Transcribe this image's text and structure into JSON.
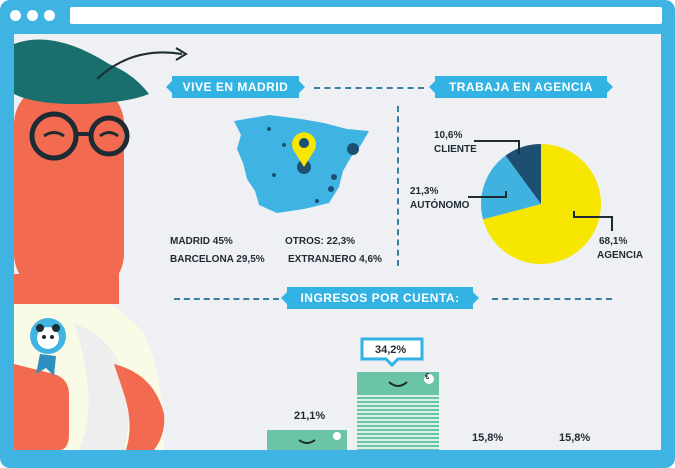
{
  "sections": {
    "madrid_title": "VIVE EN MADRID",
    "agency_title": "TRABAJA EN AGENCIA",
    "income_title": "INGRESOS POR CUENTA:"
  },
  "map_stats": {
    "madrid": "MADRID 45%",
    "barcelona": "BARCELONA 29,5%",
    "otros": "OTROS: 22,3%",
    "extranjero": "EXTRANJERO 4,6%"
  },
  "pie": {
    "cliente_pct": "10,6%",
    "cliente_label": "CLIENTE",
    "autonomo_pct": "21,3%",
    "autonomo_label": "AUTÓNOMO",
    "agencia_pct": "68,1%",
    "agencia_label": "AGENCIA",
    "colors": {
      "agencia": "#f6e600",
      "autonomo": "#3fb2e0",
      "cliente": "#1d4f73"
    }
  },
  "income": {
    "bar_1_value": "21,1%",
    "bar_2_value": "34,2%",
    "bar_3_value": "15,8%",
    "bar_4_value": "15,8%",
    "currency_symbol": "€"
  },
  "colors": {
    "frame": "#3fb4e3",
    "accent": "#33b3e4",
    "dark": "#1f2a33"
  }
}
